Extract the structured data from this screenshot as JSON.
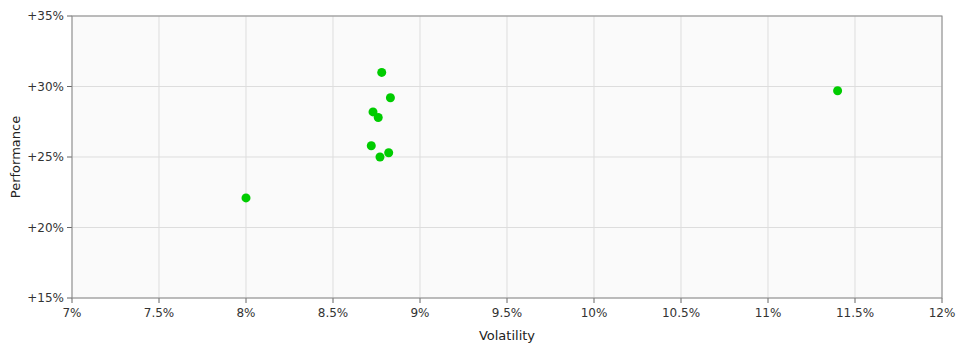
{
  "chart_data": {
    "type": "scatter",
    "xlabel": "Volatility",
    "ylabel": "Performance",
    "x": [
      0.0878,
      0.0883,
      0.0873,
      0.0876,
      0.0872,
      0.0882,
      0.0877,
      0.08,
      0.114
    ],
    "values": [
      0.31,
      0.292,
      0.282,
      0.278,
      0.258,
      0.253,
      0.25,
      0.221,
      0.297
    ],
    "color": "#00cc00",
    "xlim": [
      0.07,
      0.12
    ],
    "ylim": [
      0.15,
      0.35
    ],
    "xticks": [
      {
        "value": 0.07,
        "label": "7%"
      },
      {
        "value": 0.075,
        "label": "7.5%"
      },
      {
        "value": 0.08,
        "label": "8%"
      },
      {
        "value": 0.085,
        "label": "8.5%"
      },
      {
        "value": 0.09,
        "label": "9%"
      },
      {
        "value": 0.095,
        "label": "9.5%"
      },
      {
        "value": 0.1,
        "label": "10%"
      },
      {
        "value": 0.105,
        "label": "10.5%"
      },
      {
        "value": 0.11,
        "label": "11%"
      },
      {
        "value": 0.115,
        "label": "11.5%"
      },
      {
        "value": 0.12,
        "label": "12%"
      }
    ],
    "yticks": [
      {
        "value": 0.15,
        "label": "+15%"
      },
      {
        "value": 0.2,
        "label": "+20%"
      },
      {
        "value": 0.25,
        "label": "+25%"
      },
      {
        "value": 0.3,
        "label": "+30%"
      },
      {
        "value": 0.35,
        "label": "+35%"
      }
    ],
    "grid": true
  }
}
